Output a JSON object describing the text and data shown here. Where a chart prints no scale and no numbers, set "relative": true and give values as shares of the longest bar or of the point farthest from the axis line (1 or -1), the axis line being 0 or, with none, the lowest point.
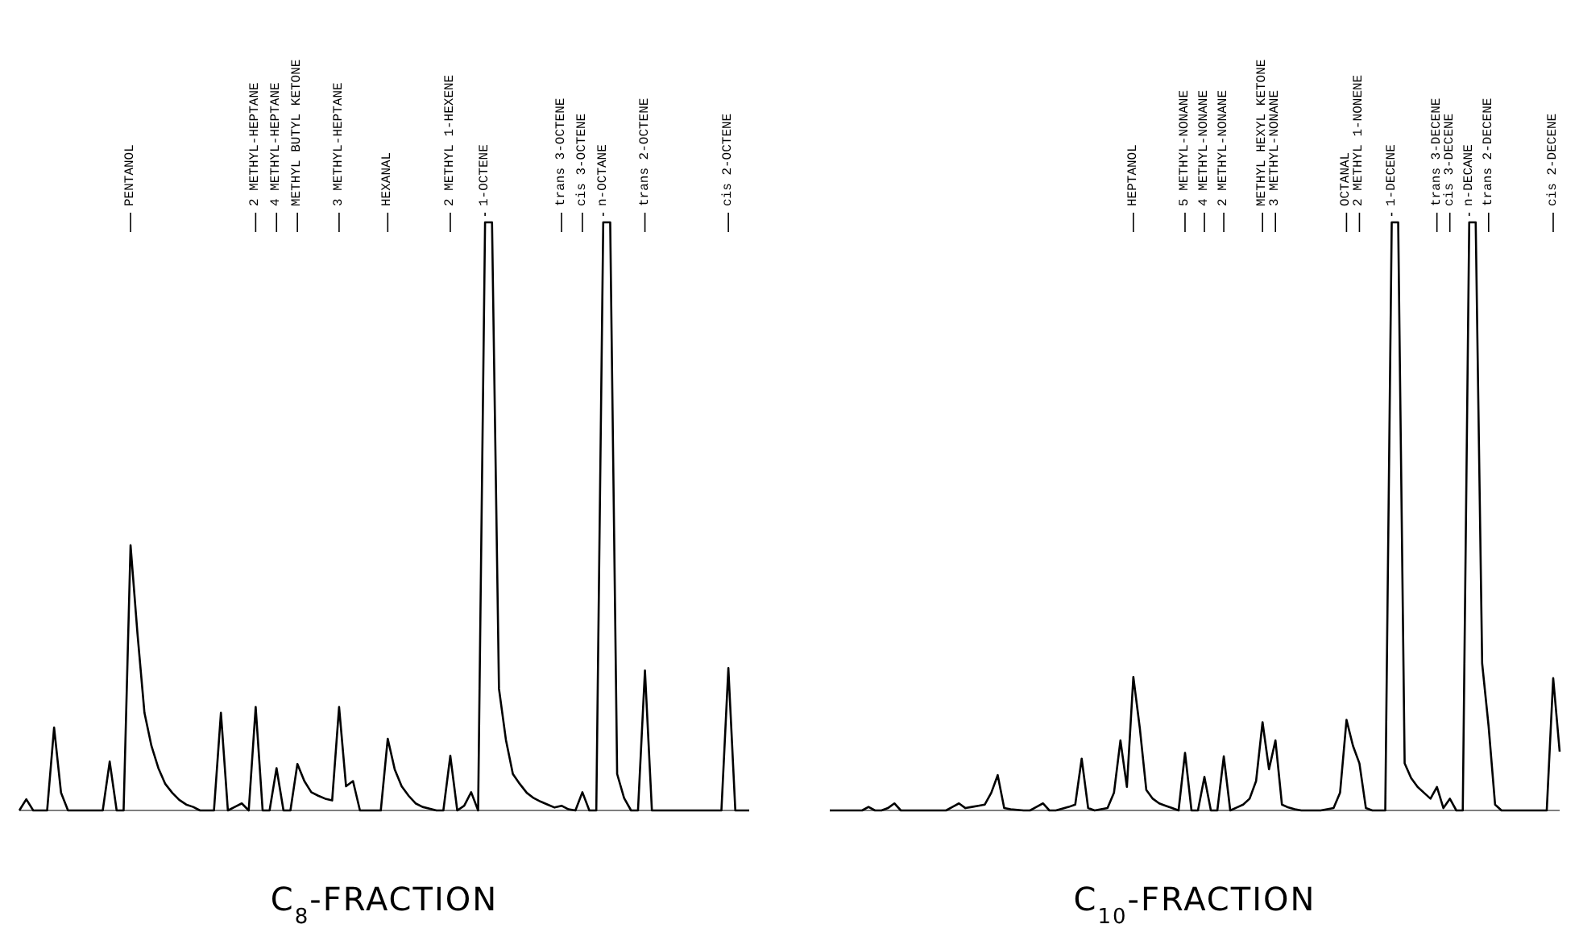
{
  "chart_data": [
    {
      "type": "line",
      "title": "C$_{8}$-FRACTION",
      "relative": true,
      "categories": [
        null,
        null,
        null,
        null,
        null,
        null,
        null,
        null,
        null,
        null,
        null,
        null,
        null,
        null,
        null,
        null,
        "PENTANOL",
        null,
        null,
        null,
        null,
        null,
        null,
        null,
        null,
        null,
        null,
        null,
        null,
        null,
        null,
        null,
        null,
        null,
        "2 METHYL-HEPTANE",
        null,
        null,
        "4 METHYL-HEPTANE",
        null,
        null,
        "METHYL BUTYL KETONE",
        null,
        null,
        null,
        null,
        null,
        "3 METHYL-HEPTANE",
        null,
        null,
        null,
        null,
        null,
        null,
        "HEXANAL",
        null,
        null,
        null,
        null,
        null,
        null,
        null,
        null,
        "2 METHYL 1-HEXENE",
        null,
        null,
        null,
        null,
        "1-OCTENE",
        null,
        null,
        null,
        null,
        null,
        null,
        null,
        null,
        null,
        null,
        "trans 3-OCTENE",
        null,
        null,
        "cis 3-OCTENE",
        null,
        null,
        "n-OCTANE",
        null,
        null,
        null,
        null,
        null,
        "trans 2-OCTENE",
        null,
        null,
        null,
        null,
        null,
        null,
        null,
        null,
        null,
        null,
        null,
        "cis 2-OCTENE",
        null,
        null,
        null
      ],
      "series": [
        {
          "color": "#000000",
          "values": [
            0,
            0.019,
            0,
            0,
            0,
            0.141,
            0.03,
            0,
            0,
            0,
            0,
            0,
            0,
            0.083,
            0,
            0,
            0.451,
            0.3,
            0.166,
            0.11,
            0.072,
            0.045,
            0.03,
            0.018,
            0.01,
            0.006,
            0,
            0,
            0,
            0.166,
            0,
            0.006,
            0.012,
            0,
            0.176,
            0,
            0,
            0.072,
            0,
            0,
            0.079,
            0.05,
            0.031,
            0.025,
            0.02,
            0.017,
            0.176,
            0.041,
            0.05,
            0,
            0,
            0,
            0,
            0.122,
            0.07,
            0.041,
            0.025,
            0.012,
            0.006,
            0.003,
            0,
            0,
            0.093,
            0,
            0.008,
            0.031,
            0,
            1,
            1,
            0.207,
            0.12,
            0.062,
            0.045,
            0.03,
            0.021,
            0.015,
            0.01,
            0.005,
            0.008,
            0.002,
            0,
            0.031,
            0,
            0,
            1,
            1,
            0.062,
            0.021,
            0,
            0,
            0.238,
            0,
            0,
            0,
            0,
            0,
            0,
            0,
            0,
            0,
            0,
            0,
            0.242,
            0,
            0,
            0
          ]
        }
      ]
    },
    {
      "type": "line",
      "title": "C$_{10}$-FRACTION",
      "relative": true,
      "categories": [
        null,
        null,
        null,
        null,
        null,
        null,
        null,
        null,
        null,
        null,
        null,
        null,
        null,
        null,
        null,
        null,
        null,
        null,
        null,
        null,
        null,
        null,
        null,
        null,
        null,
        null,
        null,
        null,
        null,
        null,
        null,
        null,
        null,
        null,
        null,
        null,
        null,
        null,
        null,
        null,
        null,
        null,
        null,
        null,
        null,
        null,
        null,
        "HEPTANOL",
        null,
        null,
        null,
        null,
        null,
        null,
        null,
        "5 METHYL-NONANE",
        null,
        null,
        "4 METHYL-NONANE",
        null,
        null,
        "2 METHYL-NONANE",
        null,
        null,
        null,
        null,
        null,
        "METHYL HEXYL KETONE",
        null,
        "3 METHYL-NONANE",
        null,
        null,
        null,
        null,
        null,
        null,
        null,
        null,
        null,
        null,
        "OCTANAL",
        null,
        "2 METHYL 1-NONENE",
        null,
        null,
        null,
        null,
        "1-DECENE",
        null,
        null,
        null,
        null,
        null,
        null,
        "trans 3-DECENE",
        null,
        "cis 3-DECENE",
        null,
        null,
        "n-DECANE",
        null,
        null,
        "trans 2-DECENE",
        null,
        null,
        null,
        null,
        null,
        null,
        null,
        null,
        null,
        "cis 2-DECENE",
        null
      ],
      "series": [
        {
          "color": "#000000",
          "values": [
            0,
            0,
            0,
            0,
            0,
            0,
            0.006,
            0,
            0,
            0.004,
            0.012,
            0,
            0,
            0,
            0,
            0,
            0,
            0,
            0,
            0.006,
            0.012,
            0.004,
            0.006,
            0.008,
            0.01,
            0.03,
            0.06,
            0.004,
            0.002,
            0.001,
            0,
            0,
            0.006,
            0.012,
            0,
            0,
            0.003,
            0.006,
            0.01,
            0.088,
            0.004,
            0,
            0.002,
            0.004,
            0.03,
            0.119,
            0.04,
            0.227,
            0.14,
            0.035,
            0.02,
            0.012,
            0.008,
            0.004,
            0,
            0.098,
            0,
            0,
            0.057,
            0,
            0,
            0.092,
            0,
            0.005,
            0.01,
            0.02,
            0.05,
            0.15,
            0.07,
            0.119,
            0.01,
            0.005,
            0.002,
            0,
            0,
            0,
            0,
            0.002,
            0.004,
            0.03,
            0.154,
            0.11,
            0.08,
            0.004,
            0,
            0,
            0,
            1,
            1,
            0.08,
            0.055,
            0.04,
            0.03,
            0.02,
            0.04,
            0.004,
            0.02,
            0,
            0,
            1,
            1,
            0.25,
            0.143,
            0.01,
            0,
            0,
            0,
            0,
            0,
            0,
            0,
            0,
            0.225,
            0.1
          ]
        }
      ]
    }
  ]
}
